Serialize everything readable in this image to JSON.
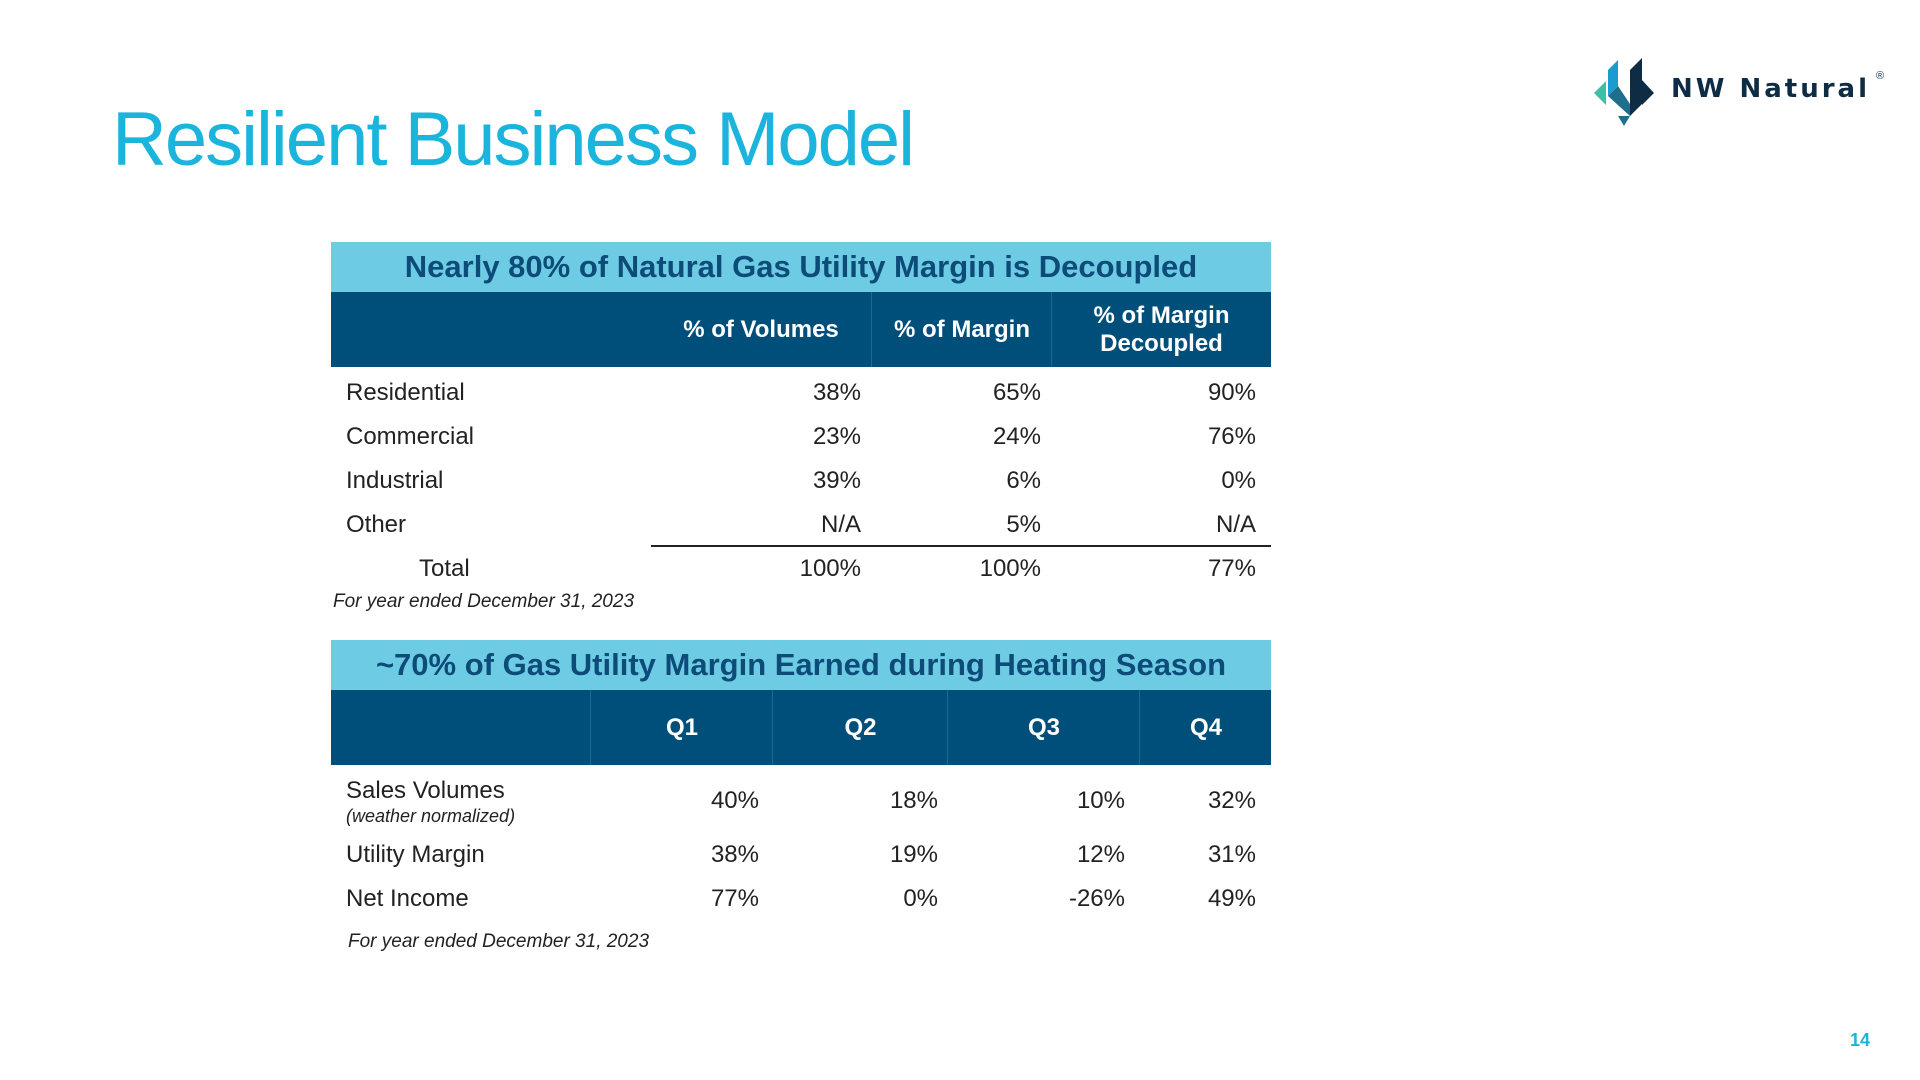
{
  "slide": {
    "title": "Resilient Business Model",
    "page_number": "14"
  },
  "logo": {
    "text": "NW Natural",
    "registered_mark": "®",
    "icon": "nw-natural-logo-icon",
    "colors": [
      "#0f2c45",
      "#1a9bd1",
      "#3dbfa6",
      "#1f6e8c"
    ]
  },
  "colors": {
    "title": "#1ab4dc",
    "banner_bg": "#6dcce3",
    "banner_text": "#0d4b78",
    "header_bg": "#004f7a",
    "header_text": "#ffffff"
  },
  "table1": {
    "banner": "Nearly 80% of Natural Gas Utility Margin is Decoupled",
    "headers": [
      "",
      "% of Volumes",
      "% of Margin",
      "% of Margin Decoupled"
    ],
    "rows": [
      {
        "label": "Residential",
        "values": [
          "38%",
          "65%",
          "90%"
        ]
      },
      {
        "label": "Commercial",
        "values": [
          "23%",
          "24%",
          "76%"
        ]
      },
      {
        "label": "Industrial",
        "values": [
          "39%",
          "6%",
          "0%"
        ]
      },
      {
        "label": "Other",
        "values": [
          "N/A",
          "5%",
          "N/A"
        ]
      }
    ],
    "total": {
      "label": "Total",
      "values": [
        "100%",
        "100%",
        "77%"
      ]
    },
    "footnote": "For year ended December 31, 2023"
  },
  "table2": {
    "banner": "~70% of Gas Utility Margin Earned during Heating Season",
    "headers": [
      "",
      "Q1",
      "Q2",
      "Q3",
      "Q4"
    ],
    "rows": [
      {
        "label": "Sales Volumes",
        "sublabel": "(weather normalized)",
        "values": [
          "40%",
          "18%",
          "10%",
          "32%"
        ]
      },
      {
        "label": "Utility Margin",
        "values": [
          "38%",
          "19%",
          "12%",
          "31%"
        ]
      },
      {
        "label": "Net Income",
        "values": [
          "77%",
          "0%",
          "-26%",
          "49%"
        ]
      }
    ],
    "footnote": "For year ended December 31, 2023"
  }
}
